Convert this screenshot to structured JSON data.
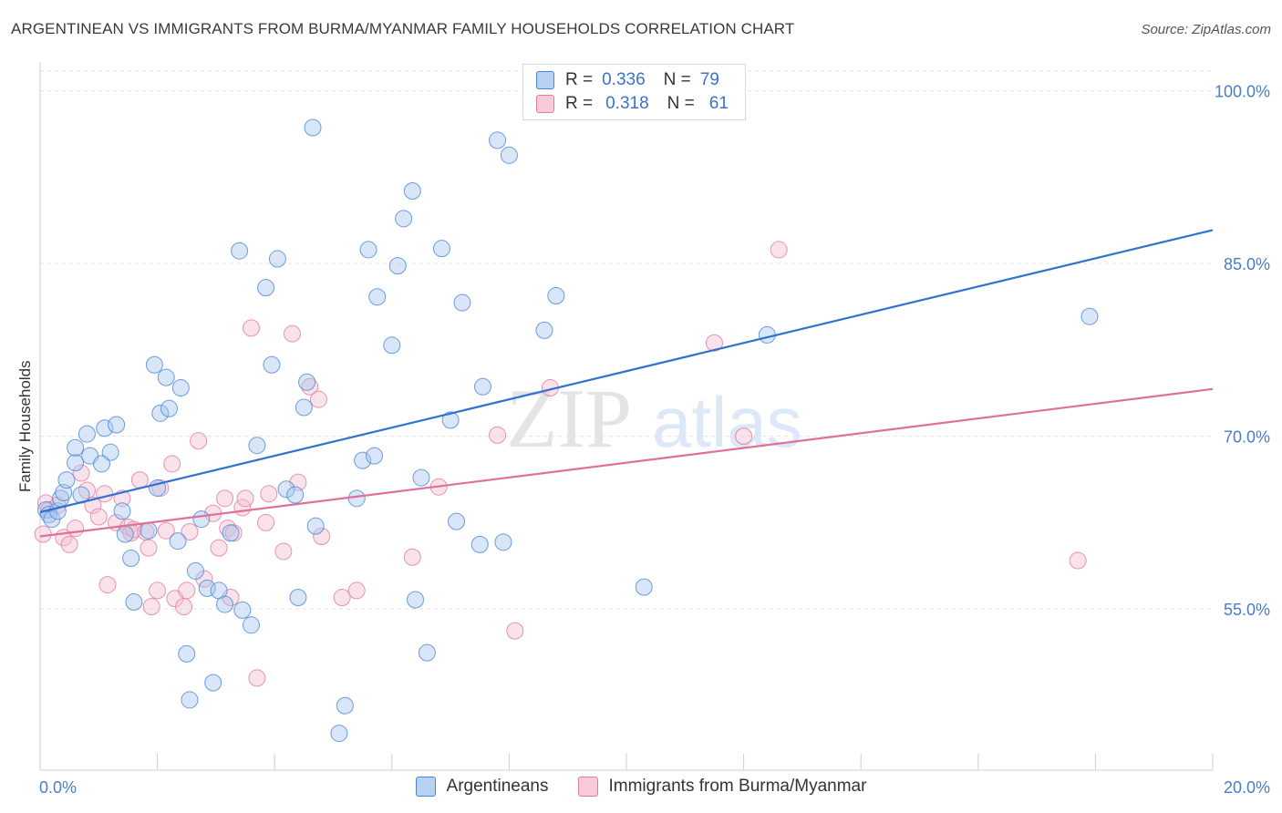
{
  "title": "ARGENTINEAN VS IMMIGRANTS FROM BURMA/MYANMAR FAMILY HOUSEHOLDS CORRELATION CHART",
  "source": "Source: ZipAtlas.com",
  "watermark": {
    "zip": "ZIP",
    "atlas": "atlas"
  },
  "legend_top": {
    "series1": {
      "r_label": "R =",
      "r_value": "0.336",
      "n_label": "N =",
      "n_value": "79"
    },
    "series2": {
      "r_label": "R =",
      "r_value": "0.318",
      "n_label": "N =",
      "n_value": "61"
    }
  },
  "colors": {
    "blue": "#4a86d8",
    "blue_fill": "#a9c8f0",
    "blue_line": "#2f72cf",
    "pink": "#e17ba0",
    "pink_fill": "#f5bfd0",
    "pink_line": "#e0709a",
    "tick_label": "#4a7cc8",
    "grid": "#e2e2e2"
  },
  "chart_data": {
    "type": "scatter",
    "title": "ARGENTINEAN VS IMMIGRANTS FROM BURMA/MYANMAR FAMILY HOUSEHOLDS CORRELATION CHART",
    "xlabel": "",
    "ylabel": "Family Households",
    "xlim": [
      0,
      20
    ],
    "ylim": [
      41,
      102.5
    ],
    "x_tick_labels": {
      "min": "0.0%",
      "max": "20.0%"
    },
    "y_ticks": [
      {
        "value": 100,
        "label": "100.0%"
      },
      {
        "value": 85,
        "label": "85.0%"
      },
      {
        "value": 70,
        "label": "70.0%"
      },
      {
        "value": 55,
        "label": "55.0%"
      }
    ],
    "series": [
      {
        "name": "Argentineans",
        "trend": {
          "x": [
            0,
            20
          ],
          "y": [
            63.4,
            87.9
          ]
        },
        "points": [
          [
            0.1,
            63.6
          ],
          [
            0.15,
            63.2
          ],
          [
            0.2,
            62.8
          ],
          [
            0.3,
            63.5
          ],
          [
            0.35,
            64.6
          ],
          [
            0.4,
            65.1
          ],
          [
            0.45,
            66.2
          ],
          [
            0.6,
            67.7
          ],
          [
            0.7,
            64.9
          ],
          [
            0.8,
            70.2
          ],
          [
            0.85,
            68.3
          ],
          [
            0.6,
            69.0
          ],
          [
            1.1,
            70.7
          ],
          [
            1.2,
            68.6
          ],
          [
            1.3,
            71.0
          ],
          [
            1.05,
            67.6
          ],
          [
            1.4,
            63.5
          ],
          [
            1.45,
            61.5
          ],
          [
            1.55,
            59.4
          ],
          [
            1.6,
            55.6
          ],
          [
            1.85,
            61.8
          ],
          [
            1.95,
            76.2
          ],
          [
            2.0,
            65.5
          ],
          [
            2.05,
            72.0
          ],
          [
            2.15,
            75.1
          ],
          [
            2.2,
            72.4
          ],
          [
            2.35,
            60.9
          ],
          [
            2.4,
            74.2
          ],
          [
            2.5,
            51.1
          ],
          [
            2.55,
            47.1
          ],
          [
            2.65,
            58.3
          ],
          [
            2.75,
            62.8
          ],
          [
            2.85,
            56.8
          ],
          [
            2.95,
            48.6
          ],
          [
            3.05,
            56.6
          ],
          [
            3.15,
            55.4
          ],
          [
            3.25,
            61.6
          ],
          [
            3.4,
            86.1
          ],
          [
            3.45,
            54.9
          ],
          [
            3.6,
            53.6
          ],
          [
            3.7,
            69.2
          ],
          [
            3.85,
            82.9
          ],
          [
            3.95,
            76.2
          ],
          [
            4.05,
            85.4
          ],
          [
            4.2,
            65.4
          ],
          [
            4.35,
            64.9
          ],
          [
            4.4,
            56.0
          ],
          [
            4.5,
            72.5
          ],
          [
            4.55,
            74.7
          ],
          [
            4.65,
            96.8
          ],
          [
            4.7,
            62.2
          ],
          [
            5.1,
            44.2
          ],
          [
            5.2,
            46.6
          ],
          [
            5.4,
            64.6
          ],
          [
            5.5,
            67.9
          ],
          [
            5.6,
            86.2
          ],
          [
            5.7,
            68.3
          ],
          [
            5.75,
            82.1
          ],
          [
            6.0,
            77.9
          ],
          [
            6.1,
            84.8
          ],
          [
            6.2,
            88.9
          ],
          [
            6.35,
            91.3
          ],
          [
            6.4,
            55.8
          ],
          [
            6.5,
            66.4
          ],
          [
            6.6,
            51.2
          ],
          [
            6.85,
            86.3
          ],
          [
            7.0,
            71.4
          ],
          [
            7.1,
            62.6
          ],
          [
            7.2,
            81.6
          ],
          [
            7.5,
            60.6
          ],
          [
            7.55,
            74.3
          ],
          [
            7.8,
            95.7
          ],
          [
            7.9,
            60.8
          ],
          [
            8.0,
            94.4
          ],
          [
            8.6,
            79.2
          ],
          [
            8.8,
            82.2
          ],
          [
            10.3,
            56.9
          ],
          [
            12.4,
            78.8
          ],
          [
            17.9,
            80.4
          ]
        ]
      },
      {
        "name": "Immigrants from Burma/Myanmar",
        "trend": {
          "x": [
            0,
            20
          ],
          "y": [
            61.3,
            74.1
          ]
        },
        "points": [
          [
            0.05,
            61.5
          ],
          [
            0.1,
            64.2
          ],
          [
            0.15,
            63.6
          ],
          [
            0.3,
            64.0
          ],
          [
            0.4,
            61.2
          ],
          [
            0.5,
            60.6
          ],
          [
            0.6,
            62.0
          ],
          [
            0.7,
            66.8
          ],
          [
            0.8,
            65.3
          ],
          [
            0.9,
            64.0
          ],
          [
            1.0,
            63.0
          ],
          [
            1.1,
            65.0
          ],
          [
            1.15,
            57.1
          ],
          [
            1.3,
            62.5
          ],
          [
            1.4,
            64.6
          ],
          [
            1.5,
            62.1
          ],
          [
            1.55,
            61.6
          ],
          [
            1.6,
            61.9
          ],
          [
            1.7,
            66.2
          ],
          [
            1.8,
            61.7
          ],
          [
            1.85,
            60.3
          ],
          [
            1.9,
            55.2
          ],
          [
            2.0,
            56.6
          ],
          [
            2.05,
            65.5
          ],
          [
            2.15,
            61.8
          ],
          [
            2.25,
            67.6
          ],
          [
            2.3,
            55.9
          ],
          [
            2.45,
            55.2
          ],
          [
            2.5,
            56.6
          ],
          [
            2.55,
            61.7
          ],
          [
            2.7,
            69.6
          ],
          [
            2.8,
            57.6
          ],
          [
            2.95,
            63.3
          ],
          [
            3.05,
            60.3
          ],
          [
            3.15,
            64.6
          ],
          [
            3.2,
            62.0
          ],
          [
            3.25,
            56.0
          ],
          [
            3.3,
            61.6
          ],
          [
            3.45,
            63.8
          ],
          [
            3.5,
            64.6
          ],
          [
            3.6,
            79.4
          ],
          [
            3.7,
            49.0
          ],
          [
            3.85,
            62.5
          ],
          [
            3.9,
            65.0
          ],
          [
            4.15,
            60.0
          ],
          [
            4.3,
            78.9
          ],
          [
            4.4,
            66.0
          ],
          [
            4.6,
            74.3
          ],
          [
            4.75,
            73.2
          ],
          [
            4.8,
            61.3
          ],
          [
            5.15,
            56.0
          ],
          [
            5.4,
            56.6
          ],
          [
            6.35,
            59.5
          ],
          [
            6.8,
            65.6
          ],
          [
            7.8,
            70.1
          ],
          [
            8.1,
            53.1
          ],
          [
            8.7,
            74.2
          ],
          [
            11.5,
            78.1
          ],
          [
            12.0,
            70.0
          ],
          [
            12.6,
            86.2
          ],
          [
            17.7,
            59.2
          ]
        ]
      }
    ]
  },
  "bottom_legend": {
    "series1": "Argentineans",
    "series2": "Immigrants from Burma/Myanmar"
  }
}
